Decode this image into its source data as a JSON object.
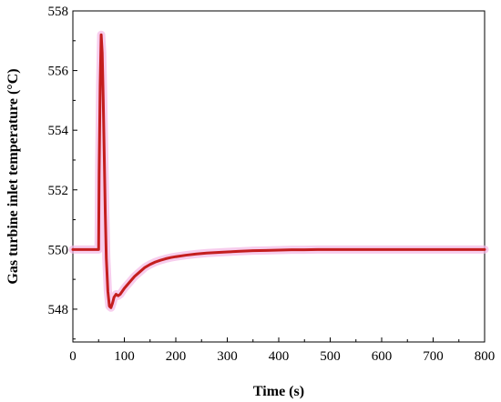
{
  "chart_data": {
    "type": "line",
    "title": "",
    "xlabel": "Time (s)",
    "ylabel": "Gas turbine inlet temperature (°C)",
    "xlim": [
      0,
      800
    ],
    "ylim": [
      546.9,
      558
    ],
    "xticks": [
      0,
      100,
      200,
      300,
      400,
      500,
      600,
      700,
      800
    ],
    "yticks": [
      548,
      550,
      552,
      554,
      556,
      558
    ],
    "grid": false,
    "legend": "none",
    "colors": {
      "line": "#c41e1e",
      "glow": "#f3b8e6",
      "axis": "#000000"
    },
    "series": [
      {
        "x": [
          0,
          50,
          51,
          53,
          55,
          57,
          59,
          61,
          63,
          65,
          68,
          71,
          74,
          77,
          80,
          84,
          88,
          92,
          96,
          100,
          110,
          120,
          130,
          140,
          150,
          160,
          170,
          180,
          190,
          200,
          220,
          240,
          260,
          280,
          300,
          325,
          350,
          375,
          400,
          425,
          450,
          475,
          500,
          550,
          600,
          650,
          700,
          750,
          800
        ],
        "y": [
          550,
          550,
          552.5,
          555.5,
          557.2,
          556.6,
          555.0,
          553.1,
          551.2,
          549.7,
          548.6,
          548.1,
          548.05,
          548.2,
          548.4,
          548.5,
          548.45,
          548.5,
          548.6,
          548.7,
          548.9,
          549.1,
          549.25,
          549.4,
          549.5,
          549.58,
          549.64,
          549.69,
          549.73,
          549.76,
          549.81,
          549.85,
          549.88,
          549.9,
          549.92,
          549.94,
          549.96,
          549.97,
          549.98,
          549.99,
          549.99,
          550,
          550,
          550,
          550,
          550,
          550,
          550,
          550
        ]
      }
    ]
  }
}
